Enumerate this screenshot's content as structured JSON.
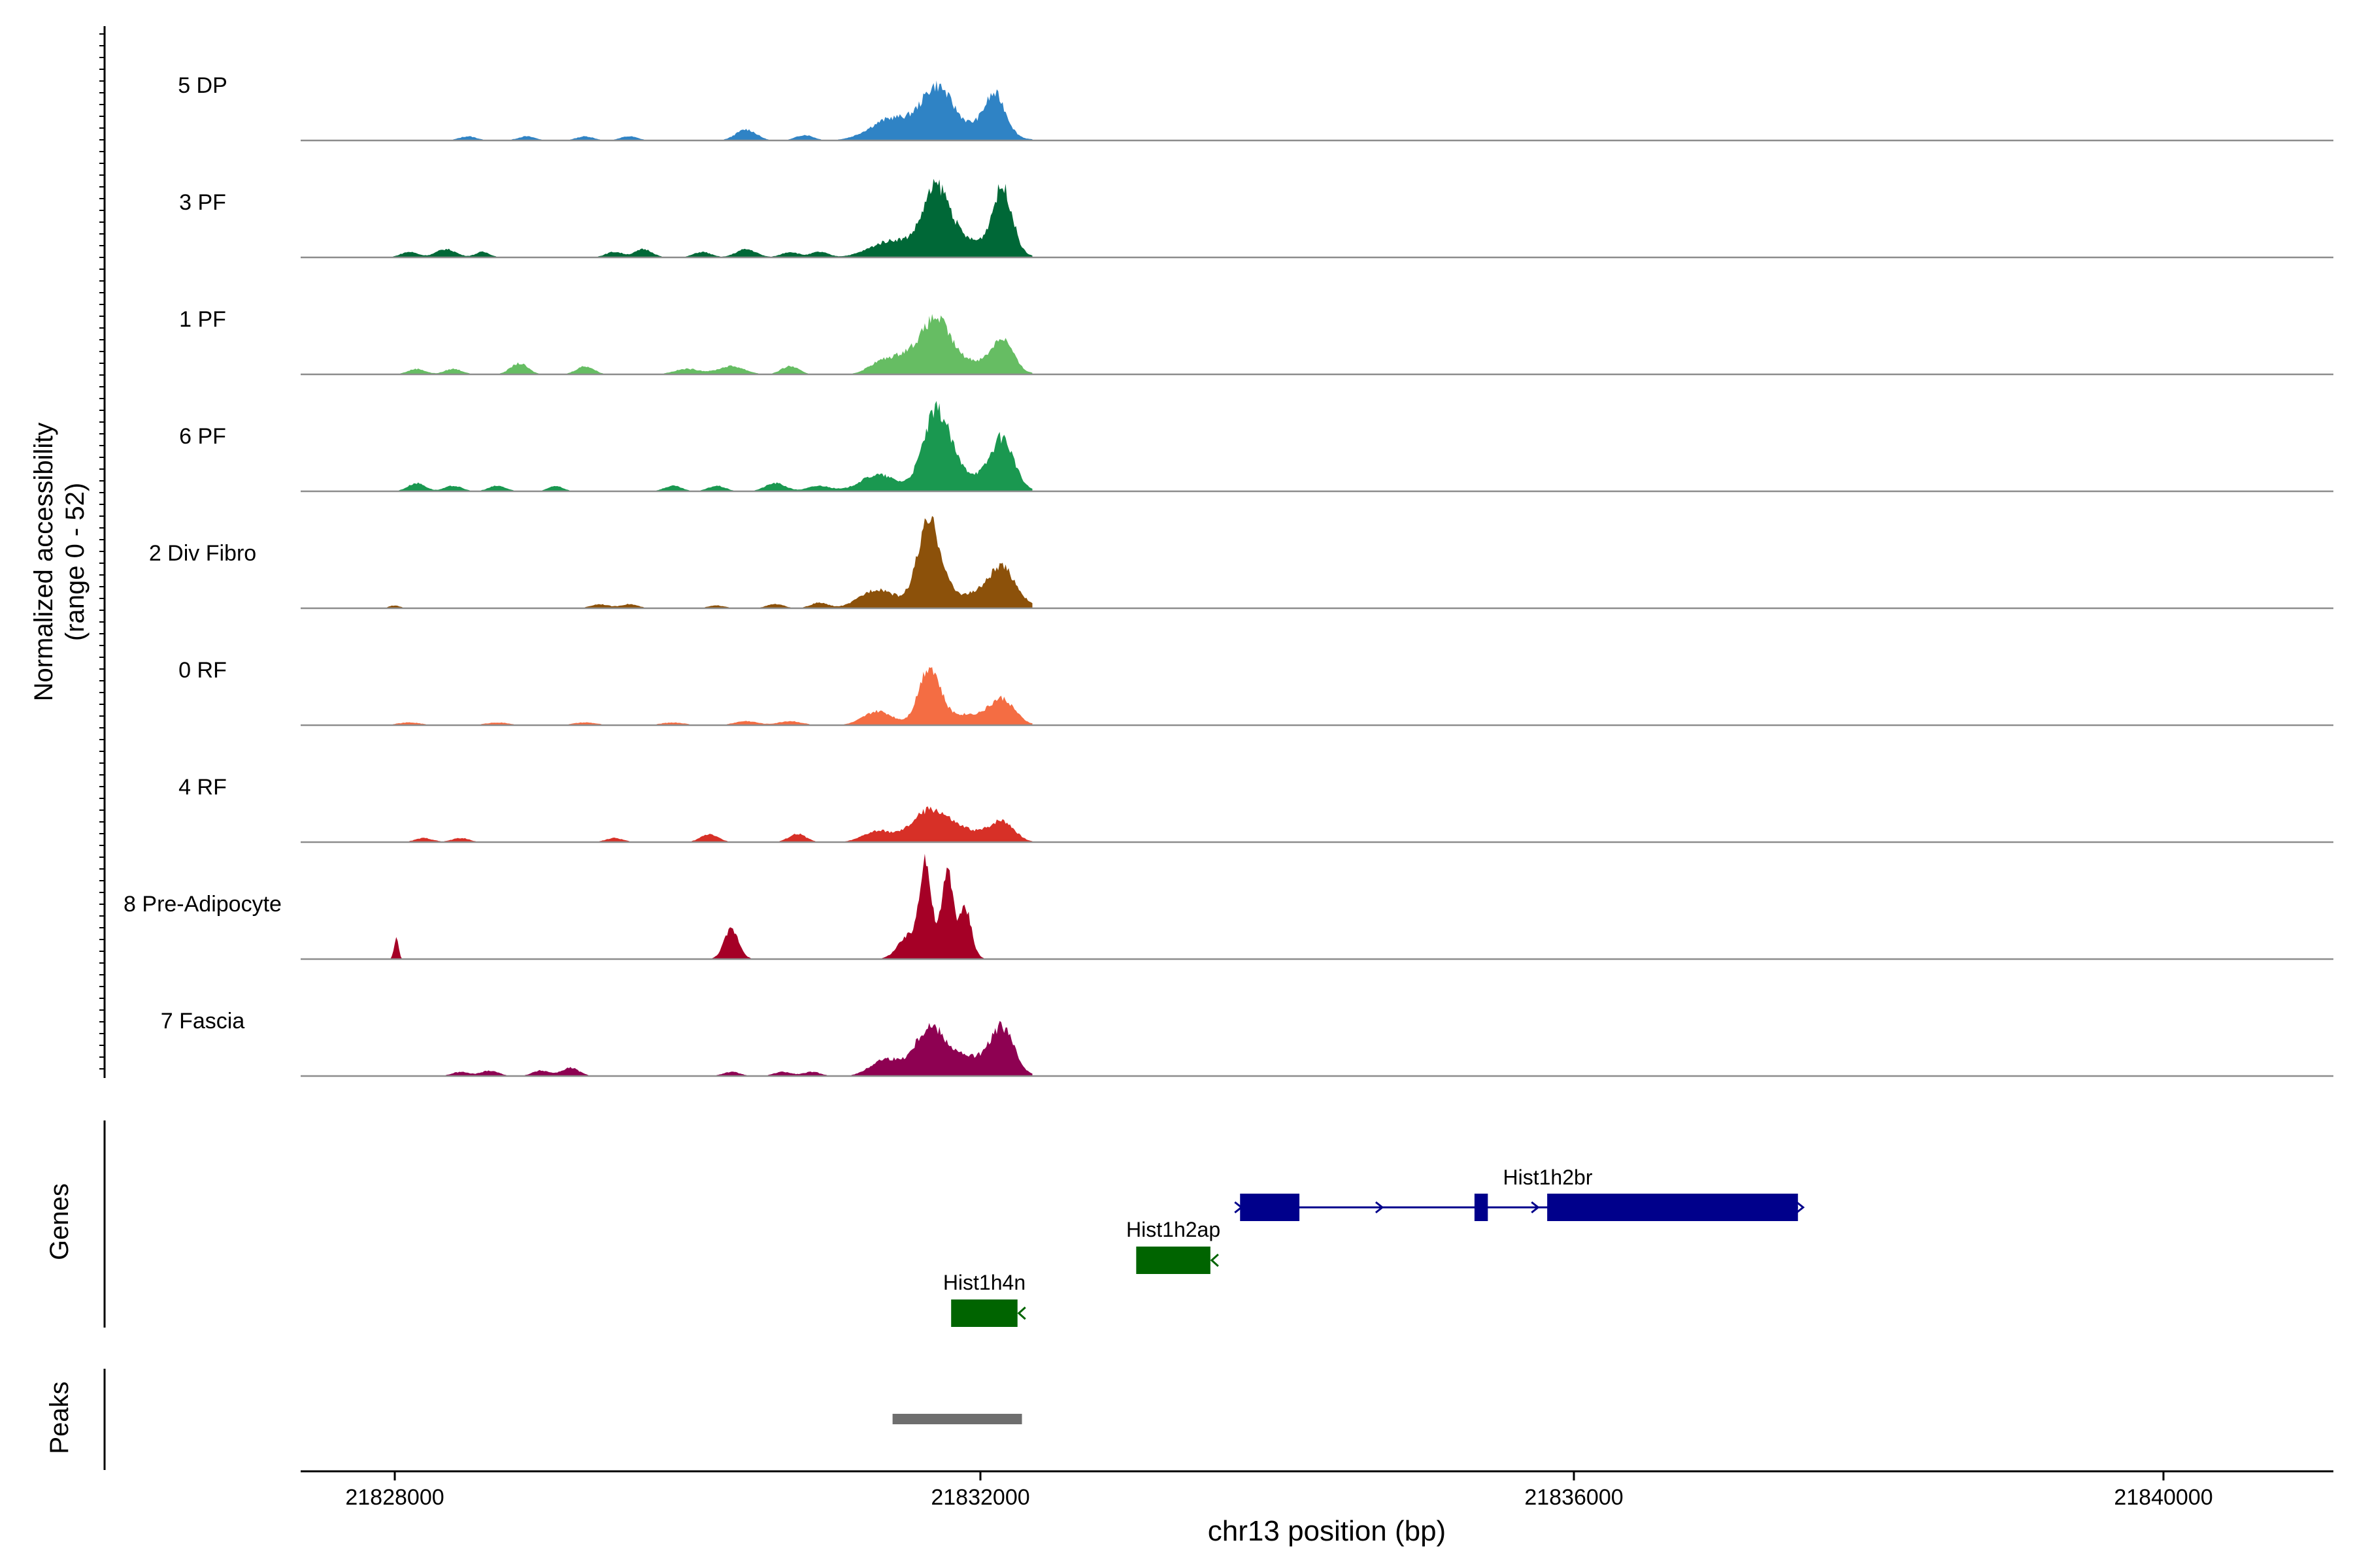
{
  "chart_data": {
    "type": "area",
    "title": "",
    "region": {
      "chromosome": "chr13",
      "start": 21827500,
      "end": 21841200
    },
    "xlabel": "chr13 position (bp)",
    "xticks": [
      21828000,
      21832000,
      21836000,
      21840000
    ],
    "xtick_labels": [
      "21828000",
      "21832000",
      "21836000",
      "21840000"
    ],
    "ylabel_line1": "Normalized accessibility",
    "ylabel_line2": "(range 0 - 52)",
    "ylim": [
      0,
      52
    ],
    "track_colors": {
      "5 DP": "#2f83c5",
      "3 PF": "#006837",
      "1 PF": "#66bd63",
      "6 PF": "#1a9850",
      "2 Div Fibro": "#8c510a",
      "0 RF": "#f46d43",
      "4 RF": "#d73027",
      "8 Pre-Adipocyte": "#a50026",
      "7 Fascia": "#8e0152"
    },
    "series": [
      {
        "name": "5 DP",
        "peaks": [
          [
            21828500,
            1.5,
            60
          ],
          [
            21828900,
            1.5,
            60
          ],
          [
            21829300,
            1.5,
            60
          ],
          [
            21829600,
            1.5,
            60
          ],
          [
            21830400,
            4,
            70
          ],
          [
            21830800,
            2,
            60
          ],
          [
            21831400,
            8,
            150
          ],
          [
            21831700,
            16,
            100
          ],
          [
            21832100,
            14,
            70
          ],
          [
            21831900,
            5,
            200
          ]
        ]
      },
      {
        "name": "3 PF",
        "peaks": [
          [
            21828100,
            2,
            60
          ],
          [
            21828350,
            3,
            70
          ],
          [
            21828600,
            2,
            50
          ],
          [
            21829500,
            2,
            60
          ],
          [
            21829700,
            3,
            60
          ],
          [
            21830100,
            2,
            60
          ],
          [
            21830400,
            3,
            70
          ],
          [
            21830700,
            2,
            60
          ],
          [
            21830900,
            2,
            60
          ],
          [
            21831400,
            6,
            150
          ],
          [
            21831700,
            22,
            90
          ],
          [
            21832150,
            23,
            65
          ],
          [
            21831900,
            6,
            200
          ]
        ]
      },
      {
        "name": "1 PF",
        "peaks": [
          [
            21828150,
            2,
            60
          ],
          [
            21828400,
            2,
            60
          ],
          [
            21828850,
            4,
            60
          ],
          [
            21829300,
            3,
            60
          ],
          [
            21830000,
            2,
            90
          ],
          [
            21830300,
            3,
            90
          ],
          [
            21830700,
            3,
            60
          ],
          [
            21831300,
            3,
            80
          ],
          [
            21831500,
            7,
            120
          ],
          [
            21831700,
            16,
            90
          ],
          [
            21832150,
            11,
            70
          ],
          [
            21831900,
            5,
            200
          ]
        ]
      },
      {
        "name": "6 PF",
        "peaks": [
          [
            21828150,
            3,
            60
          ],
          [
            21828400,
            2,
            60
          ],
          [
            21828700,
            2,
            60
          ],
          [
            21829100,
            2,
            50
          ],
          [
            21829900,
            2,
            60
          ],
          [
            21830200,
            2,
            60
          ],
          [
            21830600,
            3,
            70
          ],
          [
            21830900,
            2,
            80
          ],
          [
            21831300,
            6,
            120
          ],
          [
            21831700,
            26,
            90
          ],
          [
            21832150,
            17,
            75
          ],
          [
            21831900,
            6,
            200
          ]
        ]
      },
      {
        "name": "2 Div Fibro",
        "peaks": [
          [
            21828000,
            1,
            40
          ],
          [
            21829400,
            1.5,
            60
          ],
          [
            21829600,
            1.5,
            60
          ],
          [
            21830200,
            1,
            60
          ],
          [
            21830600,
            1.5,
            60
          ],
          [
            21830900,
            2,
            60
          ],
          [
            21831300,
            7,
            120
          ],
          [
            21831650,
            30,
            80
          ],
          [
            21832150,
            12,
            90
          ],
          [
            21831950,
            5,
            200
          ]
        ]
      },
      {
        "name": "0 RF",
        "peaks": [
          [
            21828100,
            1,
            80
          ],
          [
            21828700,
            1,
            80
          ],
          [
            21829300,
            1,
            80
          ],
          [
            21829900,
            1,
            80
          ],
          [
            21830400,
            1.5,
            80
          ],
          [
            21830700,
            1.5,
            80
          ],
          [
            21831300,
            5,
            100
          ],
          [
            21831650,
            20,
            70
          ],
          [
            21832150,
            8,
            80
          ],
          [
            21831900,
            4,
            200
          ]
        ]
      },
      {
        "name": "4 RF",
        "peaks": [
          [
            21828200,
            1.5,
            60
          ],
          [
            21828450,
            1.5,
            60
          ],
          [
            21829500,
            1.5,
            60
          ],
          [
            21830150,
            3,
            60
          ],
          [
            21830750,
            3,
            60
          ],
          [
            21831300,
            4,
            100
          ],
          [
            21831650,
            11,
            120
          ],
          [
            21832150,
            7,
            80
          ],
          [
            21831900,
            4,
            150
          ]
        ]
      },
      {
        "name": "8 Pre-Adipocyte",
        "peaks": [
          [
            21828010,
            8,
            15
          ],
          [
            21830300,
            11,
            50
          ],
          [
            21831500,
            6,
            70
          ],
          [
            21831620,
            28,
            35
          ],
          [
            21831780,
            24,
            35
          ],
          [
            21831900,
            16,
            40
          ],
          [
            21831700,
            10,
            120
          ]
        ]
      },
      {
        "name": "7 Fascia",
        "peaks": [
          [
            21828450,
            1.5,
            60
          ],
          [
            21828650,
            2,
            60
          ],
          [
            21829000,
            2,
            60
          ],
          [
            21829200,
            3,
            60
          ],
          [
            21830300,
            1.5,
            60
          ],
          [
            21830650,
            1.5,
            60
          ],
          [
            21830850,
            1.5,
            60
          ],
          [
            21831350,
            6,
            100
          ],
          [
            21831650,
            15,
            100
          ],
          [
            21832150,
            15,
            75
          ],
          [
            21831900,
            7,
            200
          ]
        ]
      }
    ],
    "genes": [
      {
        "name": "Hist1h4n",
        "strand": "-",
        "start": 21831800,
        "end": 21832250,
        "row": 3,
        "color": "#006400"
      },
      {
        "name": "Hist1h2ap",
        "strand": "-",
        "start": 21833050,
        "end": 21833550,
        "row": 2,
        "color": "#006400"
      },
      {
        "name": "Hist1h2br",
        "strand": "+",
        "start": 21833750,
        "end": 21837520,
        "row": 1,
        "color": "#00008b",
        "exons": [
          [
            21833750,
            21834150
          ],
          [
            21835330,
            21835420
          ],
          [
            21835820,
            21837520
          ]
        ],
        "arrows": [
          21834700,
          21835750
        ]
      }
    ],
    "gene_rows_labeled": [
      3,
      2,
      1
    ],
    "peak_regions": [
      [
        21831400,
        21832280
      ]
    ],
    "panel_labels": {
      "genes": "Genes",
      "peaks": "Peaks"
    }
  }
}
